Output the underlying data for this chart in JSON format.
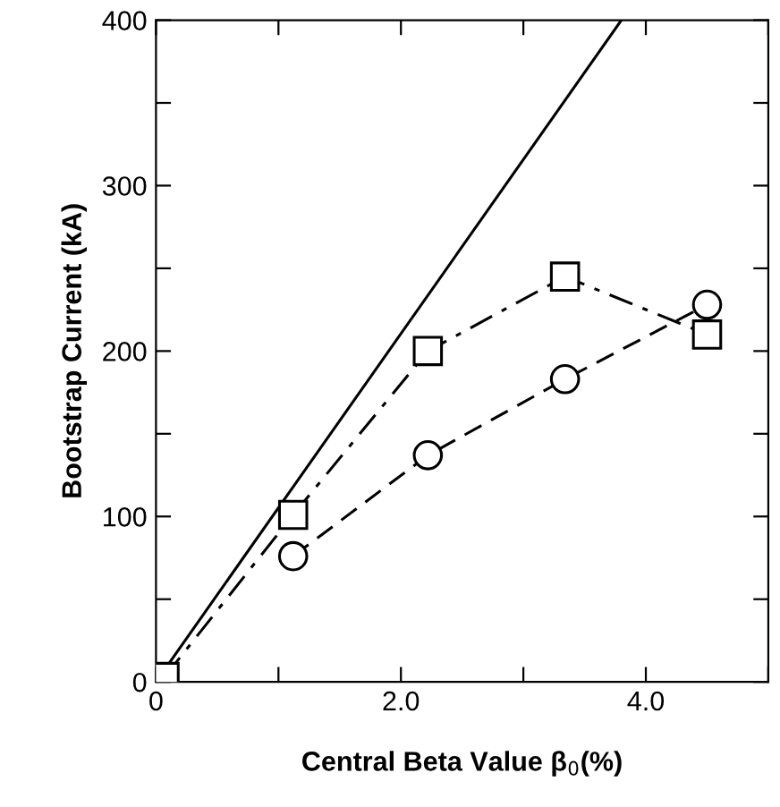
{
  "chart_data": {
    "type": "line",
    "xlabel": "Central Beta Value β$_{0}$(%)",
    "ylabel": "Bootstrap Current (kA)",
    "xlim": [
      0,
      5
    ],
    "ylim": [
      0,
      400
    ],
    "xticks": [
      {
        "value": 0,
        "label": "0"
      },
      {
        "value": 1,
        "label": null
      },
      {
        "value": 2,
        "label": "2.0"
      },
      {
        "value": 3,
        "label": null
      },
      {
        "value": 4,
        "label": "4.0"
      },
      {
        "value": 5,
        "label": null
      }
    ],
    "yticks": [
      {
        "value": 0,
        "label": "0"
      },
      {
        "value": 50,
        "label": null
      },
      100,
      {
        "value": 150,
        "label": null
      },
      200,
      {
        "value": 250,
        "label": null
      },
      300,
      {
        "value": 350,
        "label": null
      },
      400
    ],
    "grid": false,
    "legend": false,
    "series": [
      {
        "color": "#000000",
        "line_style": "solid",
        "marker": "none",
        "x": [
          0,
          3.8
        ],
        "values": [
          0,
          400
        ]
      },
      {
        "color": "#000000",
        "line_style": "dashed",
        "marker": "circle",
        "x": [
          1.12,
          2.22,
          3.34,
          4.5
        ],
        "values": [
          76,
          137,
          183,
          228
        ]
      },
      {
        "color": "#000000",
        "line_style": "dashdot",
        "marker": "square",
        "x": [
          0.07,
          1.12,
          2.22,
          3.34,
          4.5
        ],
        "values": [
          3,
          101,
          200,
          245,
          210
        ]
      }
    ]
  }
}
